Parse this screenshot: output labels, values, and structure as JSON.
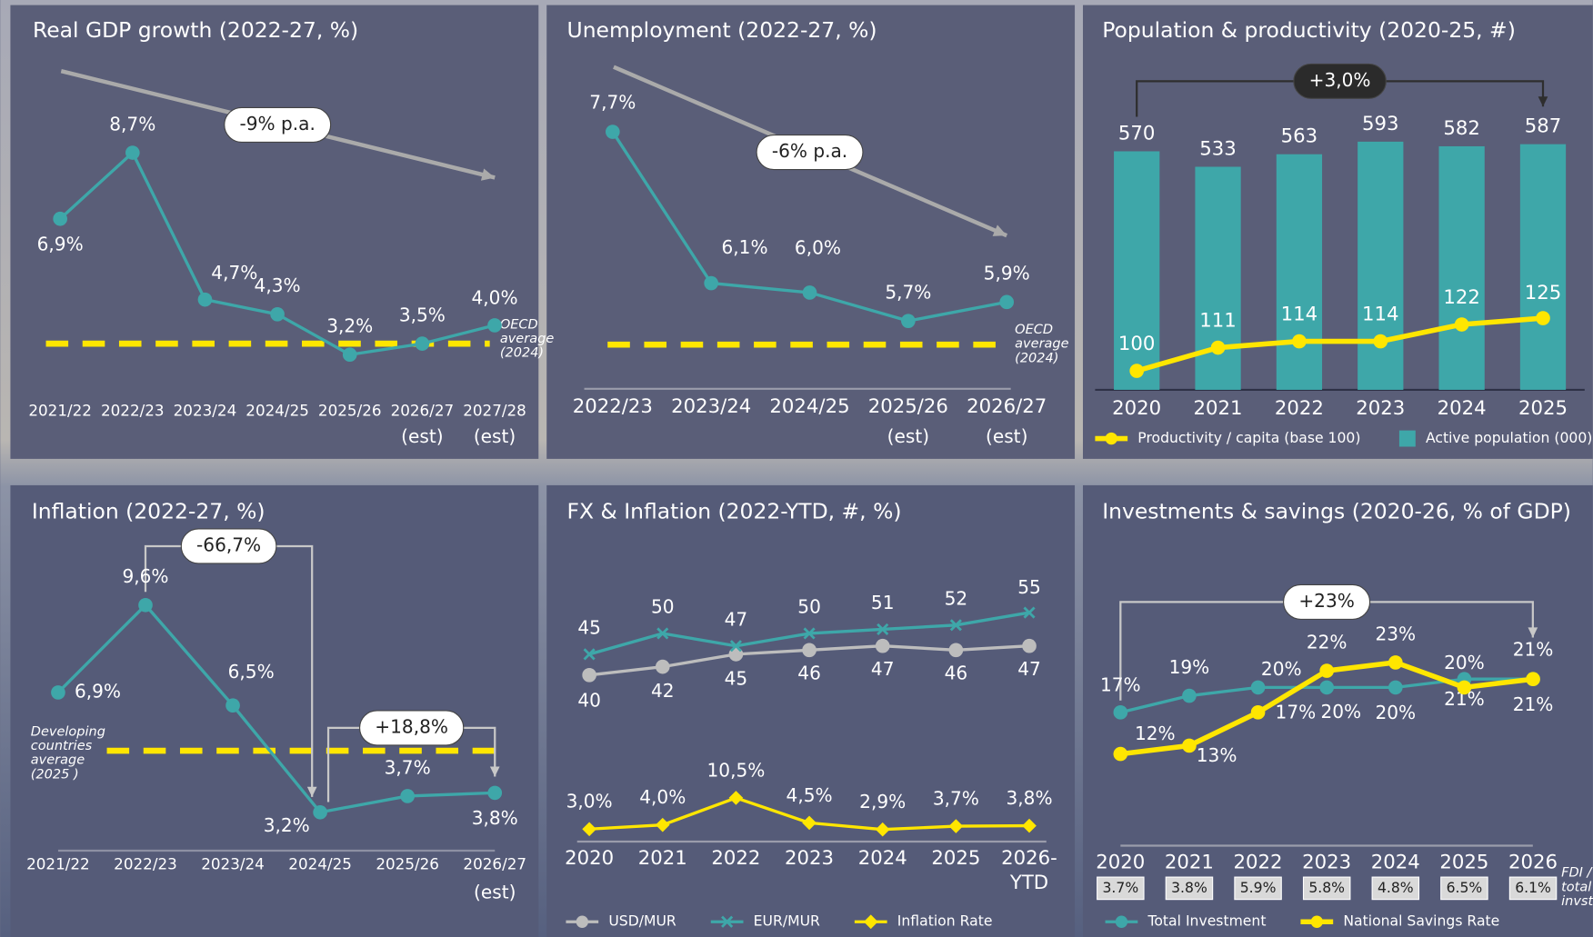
{
  "chart_data": [
    {
      "type": "line",
      "title": "Real GDP growth (2022-27, %)",
      "categories": [
        "2021/22",
        "2022/23",
        "2023/24",
        "2024/25",
        "2025/26",
        "2026/27",
        "2027/28"
      ],
      "category_notes": [
        null,
        null,
        null,
        null,
        null,
        "(est)",
        "(est)"
      ],
      "series": [
        {
          "color": "#3ea7a9",
          "values": [
            6.9,
            8.7,
            4.7,
            4.3,
            3.2,
            3.5,
            4.0
          ],
          "value_labels": [
            "6,9%",
            "8,7%",
            "4,7%",
            "4,3%",
            "3,2%",
            "3,5%",
            "4,0%"
          ]
        }
      ],
      "ylim": [
        1.8,
        11.2
      ],
      "reference": {
        "value": 3.5,
        "label": "OECD average (2024)",
        "color": "#ffe600"
      },
      "annotations": [
        "-9% p.a."
      ]
    },
    {
      "type": "line",
      "title": "Unemployment (2022-27, %)",
      "categories": [
        "2022/23",
        "2023/24",
        "2024/25",
        "2025/26",
        "2026/27"
      ],
      "category_notes": [
        null,
        null,
        null,
        "(est)",
        "(est)"
      ],
      "series": [
        {
          "color": "#3ea7a9",
          "values": [
            7.7,
            6.1,
            6.0,
            5.7,
            5.9
          ],
          "value_labels": [
            "7,7%",
            "6,1%",
            "6,0%",
            "5,7%",
            "5,9%"
          ]
        }
      ],
      "ylim": [
        4.8,
        8.45
      ],
      "reference": {
        "value": 5.45,
        "label": "OECD average (2024)",
        "color": "#ffe600"
      },
      "annotations": [
        "-6% p.a."
      ]
    },
    {
      "type": "combo",
      "title": "Population & productivity (2020-25, #)",
      "categories": [
        "2020",
        "2021",
        "2022",
        "2023",
        "2024",
        "2025"
      ],
      "series": [
        {
          "name": "Productivity / capita (base 100)",
          "type": "line",
          "axis": "y2",
          "color": "#ffe600",
          "values": [
            100,
            111,
            114,
            114,
            122,
            125
          ]
        },
        {
          "name": "Active population (000)",
          "type": "bar",
          "color": "#3ea7a9",
          "values": [
            570,
            533,
            563,
            593,
            582,
            587
          ]
        }
      ],
      "ylim": [
        0,
        786
      ],
      "y2lim": [
        91,
        247
      ],
      "legend": "bottom",
      "annotations": [
        "+3,0%"
      ]
    },
    {
      "type": "line",
      "title": "Inflation (2022-27, %)",
      "categories": [
        "2021/22",
        "2022/23",
        "2023/24",
        "2024/25",
        "2025/26",
        "2026/27"
      ],
      "category_notes": [
        null,
        null,
        null,
        null,
        null,
        "(est)"
      ],
      "series": [
        {
          "color": "#3ea7a9",
          "values": [
            6.9,
            9.6,
            6.5,
            3.2,
            3.7,
            3.8
          ],
          "value_labels": [
            "6,9%",
            "9,6%",
            "6,5%",
            "3,2%",
            "3,7%",
            "3,8%"
          ]
        }
      ],
      "ylim": [
        1.95,
        11.67
      ],
      "reference": {
        "value": 5.1,
        "label": "Developing countries average (2025 )",
        "color": "#ffe600"
      },
      "annotations": [
        "-66,7%",
        "+18,8%"
      ]
    },
    {
      "type": "line",
      "title": "FX & Inflation (2022-YTD, #, %)",
      "categories": [
        "2020",
        "2021",
        "2022",
        "2023",
        "2024",
        "2025",
        "2026-YTD"
      ],
      "series": [
        {
          "name": "USD/MUR",
          "color": "#bdbdbd",
          "marker": "circle",
          "values": [
            40,
            42,
            45,
            46,
            47,
            46,
            47
          ]
        },
        {
          "name": "EUR/MUR",
          "color": "#3ea7a9",
          "marker": "x",
          "values": [
            45,
            50,
            47,
            50,
            51,
            52,
            55
          ]
        },
        {
          "name": "Inflation Rate",
          "color": "#ffe600",
          "marker": "diamond",
          "values": [
            3.0,
            4.0,
            10.5,
            4.5,
            2.9,
            3.7,
            3.8
          ],
          "value_labels": [
            "3,0%",
            "4,0%",
            "10,5%",
            "4,5%",
            "2,9%",
            "3,7%",
            "3,8%"
          ]
        }
      ],
      "ylim": [
        0,
        65.6
      ],
      "legend": "bottom"
    },
    {
      "type": "line",
      "title": "Investments & savings (2020-26, % of GDP)",
      "categories": [
        "2020",
        "2021",
        "2022",
        "2023",
        "2024",
        "2025",
        "2026"
      ],
      "series": [
        {
          "name": "Total Investment",
          "color": "#3ea7a9",
          "values": [
            17,
            19,
            20,
            20,
            20,
            21,
            21
          ],
          "value_labels": [
            "17%",
            "19%",
            "20%",
            "20%",
            "20%",
            "21%",
            "21%"
          ]
        },
        {
          "name": "National Savings Rate",
          "color": "#ffe600",
          "values": [
            12,
            13,
            17,
            22,
            23,
            20,
            21
          ],
          "value_labels": [
            "12%",
            "13%",
            "17%",
            "22%",
            "23%",
            "20%",
            "21%"
          ]
        }
      ],
      "ylim": [
        0,
        34.3
      ],
      "legend": "bottom",
      "table_row": {
        "label": "FDI / total invst",
        "values": [
          3.7,
          3.8,
          5.9,
          5.8,
          4.8,
          6.5,
          6.1
        ],
        "value_labels": [
          "3.7%",
          "3.8%",
          "5.9%",
          "5.8%",
          "4.8%",
          "6.5%",
          "6.1%"
        ]
      },
      "annotations": [
        "+23%"
      ]
    }
  ]
}
